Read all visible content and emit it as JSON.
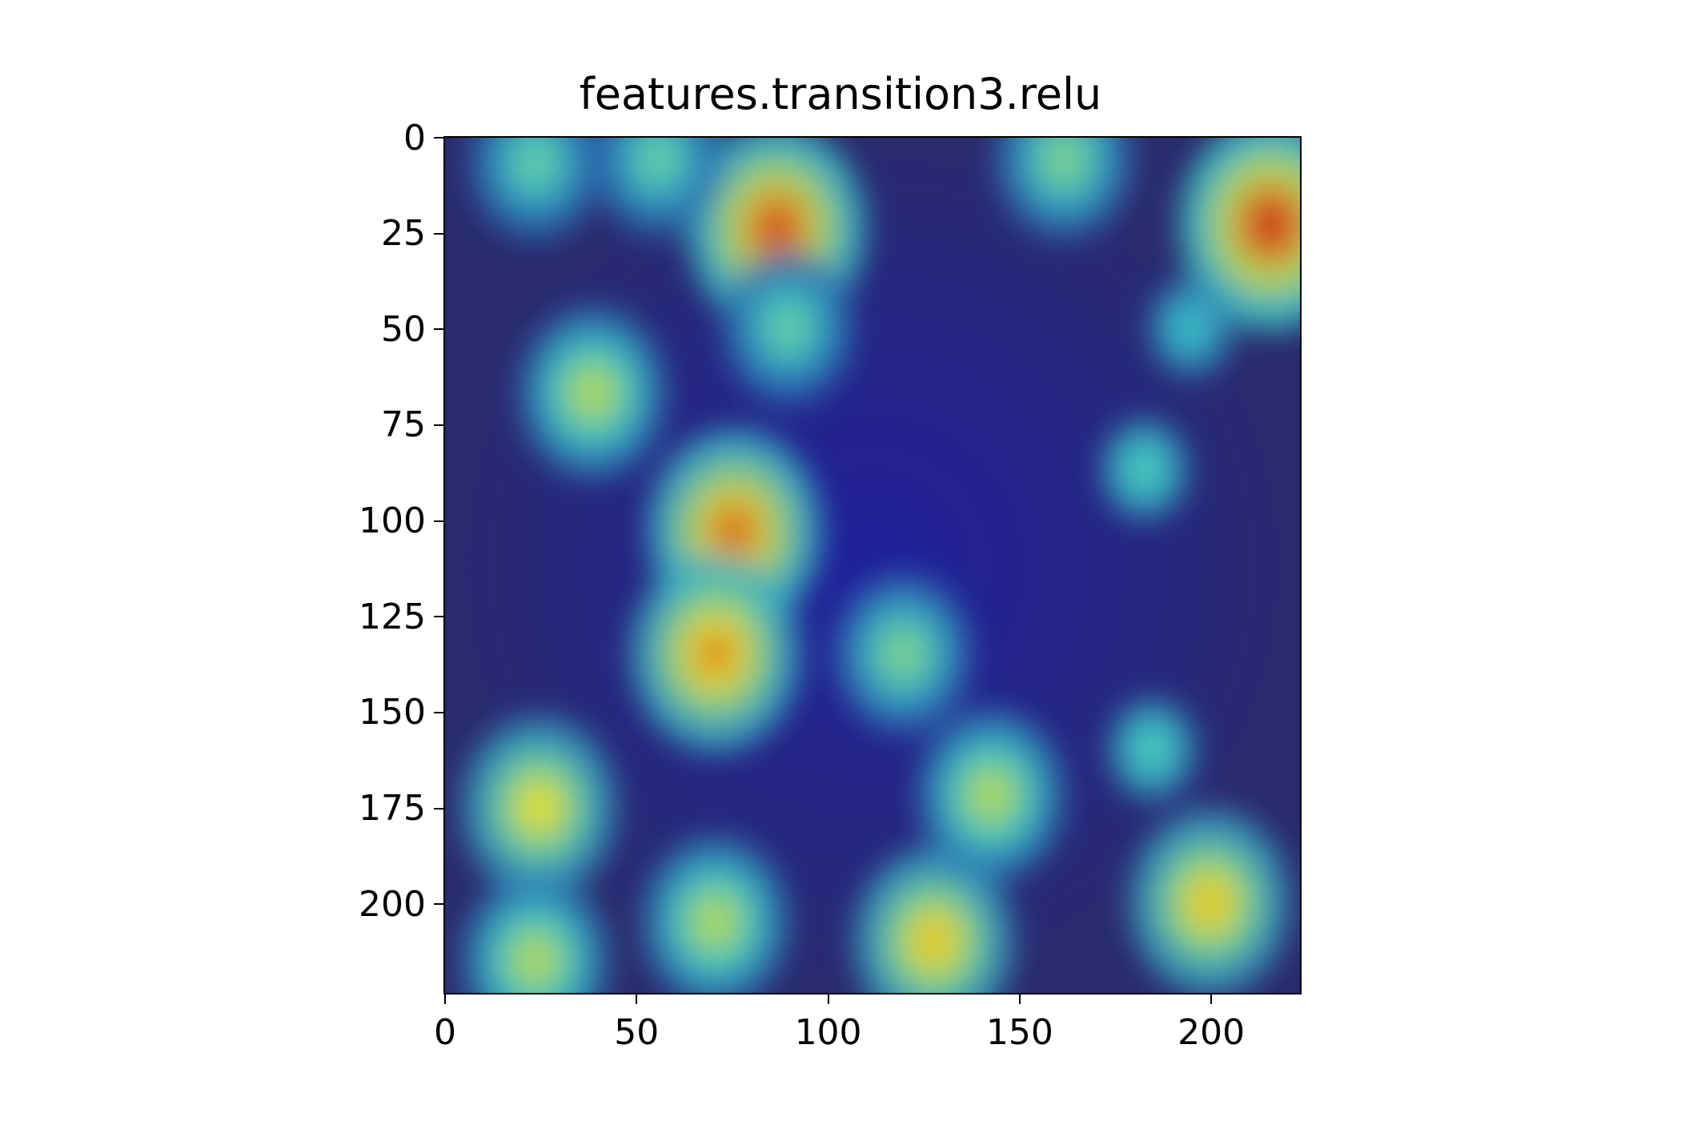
{
  "chart_data": {
    "type": "heatmap",
    "title": "features.transition3.relu",
    "xlabel": "",
    "ylabel": "",
    "image_width": 224,
    "image_height": 224,
    "xlim": [
      0,
      224
    ],
    "ylim": [
      224,
      0
    ],
    "x_ticks": [
      0,
      50,
      100,
      150,
      200
    ],
    "y_ticks": [
      0,
      25,
      50,
      75,
      100,
      125,
      150,
      175,
      200
    ],
    "colormap": "jet",
    "overlay": "Grad-CAM style activation heatmap over photo of an animal face",
    "hotspots": [
      {
        "x": 87,
        "y": 24,
        "intensity": 0.95
      },
      {
        "x": 216,
        "y": 23,
        "intensity": 1.0
      },
      {
        "x": 76,
        "y": 103,
        "intensity": 0.9
      },
      {
        "x": 71,
        "y": 135,
        "intensity": 0.85
      },
      {
        "x": 39,
        "y": 67,
        "intensity": 0.6
      },
      {
        "x": 25,
        "y": 175,
        "intensity": 0.7
      },
      {
        "x": 24,
        "y": 215,
        "intensity": 0.6
      },
      {
        "x": 71,
        "y": 205,
        "intensity": 0.6
      },
      {
        "x": 128,
        "y": 210,
        "intensity": 0.75
      },
      {
        "x": 143,
        "y": 172,
        "intensity": 0.6
      },
      {
        "x": 120,
        "y": 135,
        "intensity": 0.5
      },
      {
        "x": 200,
        "y": 200,
        "intensity": 0.75
      },
      {
        "x": 185,
        "y": 160,
        "intensity": 0.4
      },
      {
        "x": 183,
        "y": 87,
        "intensity": 0.4
      },
      {
        "x": 195,
        "y": 50,
        "intensity": 0.35
      },
      {
        "x": 24,
        "y": 7,
        "intensity": 0.45
      },
      {
        "x": 56,
        "y": 6,
        "intensity": 0.45
      },
      {
        "x": 162,
        "y": 6,
        "intensity": 0.5
      },
      {
        "x": 90,
        "y": 50,
        "intensity": 0.45
      }
    ],
    "colors": {
      "background": "#2a2a6e",
      "low": "#1e1ea0",
      "mid": "#3cc8c8",
      "high": "#f0e020",
      "peak": "#c81e1e"
    }
  }
}
